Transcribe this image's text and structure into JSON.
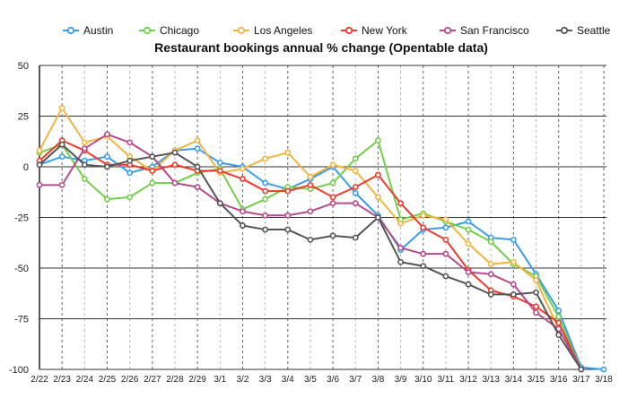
{
  "chart_data": {
    "type": "line",
    "title": "Restaurant bookings annual % change (Opentable data)",
    "xlabel": "",
    "ylabel": "",
    "ylim": [
      -100,
      50
    ],
    "yticks": [
      50,
      25,
      0,
      -25,
      -50,
      -75,
      -100
    ],
    "grid": true,
    "legend_position": "top",
    "categories": [
      "2/22",
      "2/23",
      "2/24",
      "2/25",
      "2/26",
      "2/27",
      "2/28",
      "2/29",
      "3/1",
      "3/2",
      "3/3",
      "3/4",
      "3/5",
      "3/6",
      "3/7",
      "3/8",
      "3/9",
      "3/10",
      "3/11",
      "3/12",
      "3/13",
      "3/14",
      "3/15",
      "3/16",
      "3/17",
      "3/18"
    ],
    "series": [
      {
        "name": "Austin",
        "color": "#3a9cf0",
        "values": [
          1,
          5,
          3,
          5,
          -3,
          0,
          8,
          9,
          2,
          0,
          -8,
          -11,
          -6,
          0,
          -13,
          -24,
          -41,
          -31,
          -30,
          -27,
          -35,
          -36,
          -53,
          -71,
          -99,
          -100
        ]
      },
      {
        "name": "Chicago",
        "color": "#72cf4a",
        "values": [
          7,
          11,
          -6,
          -16,
          -15,
          -8,
          -8,
          -3,
          -1,
          -21,
          -16,
          -10,
          -11,
          -8,
          4,
          13,
          -26,
          -23,
          -27,
          -31,
          -37,
          -48,
          -54,
          -74,
          -100,
          null
        ]
      },
      {
        "name": "Los Angeles",
        "color": "#f3b43f",
        "values": [
          8,
          29,
          12,
          15,
          5,
          -2,
          8,
          13,
          -3,
          -1,
          4,
          7,
          -5,
          1,
          -2,
          -15,
          -28,
          -24,
          -26,
          -38,
          -48,
          -47,
          -56,
          -80,
          -100,
          null
        ]
      },
      {
        "name": "New York",
        "color": "#ee3a2a",
        "values": [
          3,
          13,
          8,
          1,
          1,
          -2,
          1,
          -2,
          -2,
          -6,
          -12,
          -12,
          -9,
          -15,
          -10,
          -4,
          -18,
          -30,
          -36,
          -51,
          -61,
          -64,
          -69,
          -77,
          -100,
          null
        ]
      },
      {
        "name": "San Francisco",
        "color": "#b54b8c",
        "values": [
          -9,
          -9,
          9,
          16,
          12,
          5,
          -8,
          -10,
          -18,
          -22,
          -24,
          -24,
          -22,
          -18,
          -18,
          -25,
          -40,
          -43,
          -43,
          -52,
          -53,
          -58,
          -72,
          -80,
          -100,
          null
        ]
      },
      {
        "name": "Seattle",
        "color": "#555555",
        "values": [
          1,
          11,
          1,
          0,
          3,
          5,
          7,
          0,
          -18,
          -29,
          -31,
          -31,
          -36,
          -34,
          -35,
          -25,
          -47,
          -49,
          -54,
          -58,
          -63,
          -63,
          -62,
          -83,
          -100,
          null
        ]
      }
    ]
  }
}
